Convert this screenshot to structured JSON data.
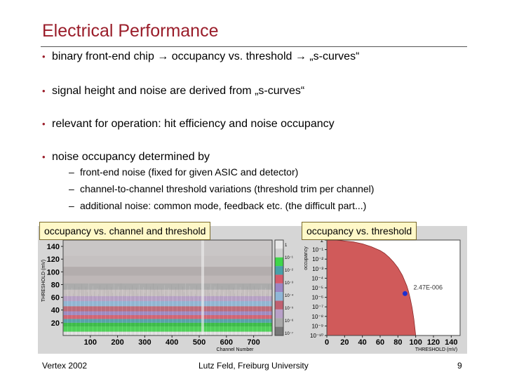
{
  "slide": {
    "title": "Electrical Performance",
    "bullets": [
      "binary front-end chip → occupancy vs. threshold → „s-curves“",
      "signal height and noise are derived from „s-curves“",
      "relevant for operation: hit efficiency and noise occupancy",
      "noise occupancy determined by"
    ],
    "sub_bullets": [
      "front-end noise (fixed for given ASIC and detector)",
      "channel-to-channel threshold variations (threshold trim per channel)",
      "additional noise: common mode, feedback etc. (the difficult part...)"
    ],
    "bullet_marker": "•",
    "sub_marker": "–"
  },
  "figure_labels": {
    "left": "occupancy vs. channel and threshold",
    "right": "occupancy vs. threshold"
  },
  "chart_data": [
    {
      "type": "heatmap",
      "title": "occupancy vs. channel and threshold",
      "xlabel": "Channel Number",
      "ylabel": "THRESHOLD (mV)",
      "x_ticks": [
        "100",
        "200",
        "300",
        "400",
        "500",
        "600",
        "700"
      ],
      "y_ticks": [
        "20",
        "40",
        "60",
        "80",
        "100",
        "120",
        "140"
      ],
      "xlim": [
        0,
        768
      ],
      "ylim": [
        0,
        150
      ],
      "colorbar_ticks": [
        "1",
        "10⁻¹",
        "10⁻²",
        "10⁻³",
        "10⁻⁴",
        "10⁻⁵",
        "10⁻⁶",
        "10⁻⁷"
      ]
    },
    {
      "type": "area",
      "title": "occupancy vs. threshold",
      "xlabel": "THRESHOLD (mV)",
      "ylabel": "occupancy",
      "x_ticks": [
        "0",
        "20",
        "40",
        "60",
        "80",
        "100",
        "120",
        "140"
      ],
      "y_ticks": [
        "1",
        "10⁻¹",
        "10⁻²",
        "10⁻³",
        "10⁻⁴",
        "10⁻⁵",
        "10⁻⁶",
        "10⁻⁷",
        "10⁻⁸",
        "10⁻⁹",
        "10⁻¹⁰"
      ],
      "xlim": [
        0,
        150
      ],
      "ylim_log10": [
        -10,
        0
      ],
      "x": [
        0,
        10,
        20,
        30,
        40,
        50,
        60,
        65,
        70,
        75,
        80,
        85,
        90,
        92,
        94,
        96,
        98,
        100
      ],
      "log10_occupancy": [
        0,
        0,
        -0.1,
        -0.2,
        -0.4,
        -0.7,
        -1.1,
        -1.4,
        -1.8,
        -2.3,
        -2.9,
        -3.7,
        -4.8,
        -5.4,
        -6.2,
        -7.1,
        -8.3,
        -10
      ],
      "marker": {
        "x": 88,
        "log10_y": -5.61,
        "label": "2.47E-006"
      }
    }
  ],
  "footer": {
    "left": "Vertex 2002",
    "center": "Lutz Feld, Freiburg University",
    "page": "9"
  },
  "colors": {
    "title": "#9a1d2a",
    "area_fill": "#d05a5a",
    "marker": "#1f2fd0"
  }
}
